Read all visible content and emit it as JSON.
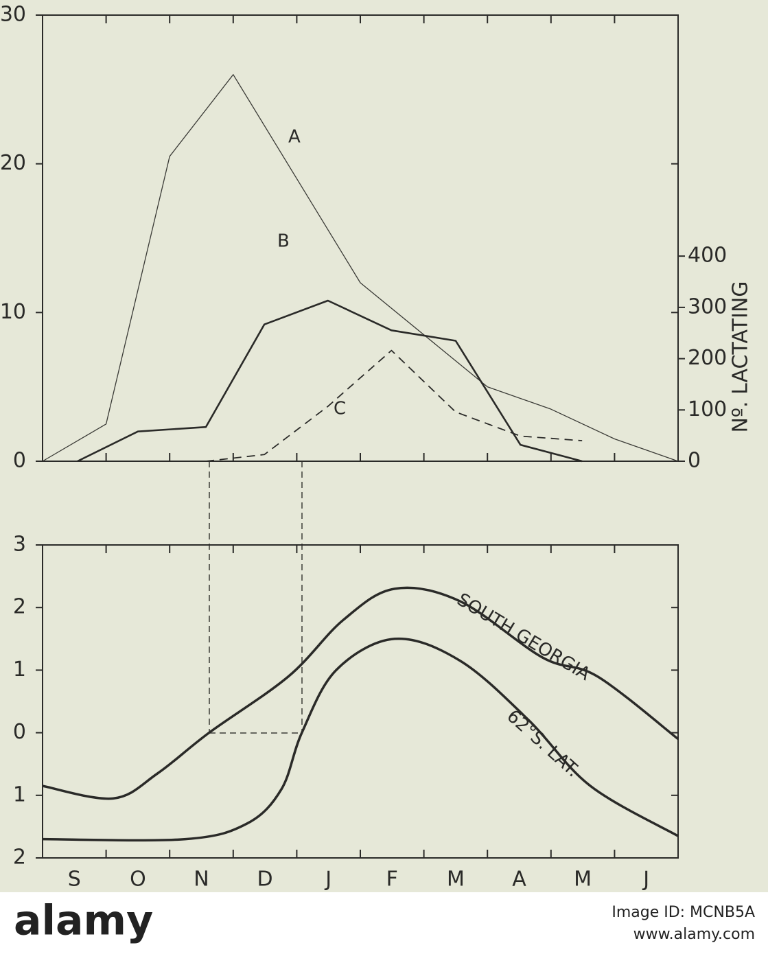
{
  "chart_data": [
    {
      "type": "line",
      "y2label": "Nº. LACTATING",
      "xlim": [
        0,
        10
      ],
      "ylim": [
        0,
        30
      ],
      "yticks": [
        0,
        10,
        20,
        30
      ],
      "y2lim": [
        0,
        870
      ],
      "y2ticks": [
        0,
        100,
        200,
        300,
        400
      ],
      "series": [
        {
          "name": "A",
          "color": "#3a3a36",
          "width": 1.3,
          "dash": false,
          "x": [
            0,
            1,
            2,
            3,
            4,
            5,
            7,
            8,
            9,
            10
          ],
          "values": [
            0,
            2.5,
            20.5,
            26,
            19,
            12,
            5,
            3.5,
            1.5,
            0
          ]
        },
        {
          "name": "B",
          "color": "#2a2a28",
          "width": 2.6,
          "dash": false,
          "x": [
            0.55,
            1.5,
            2.57,
            3.49,
            4.49,
            5.49,
            6.5,
            7.52,
            8.49
          ],
          "values": [
            0,
            2,
            2.3,
            9.2,
            10.8,
            8.8,
            8.1,
            1.1,
            0
          ]
        },
        {
          "name": "C",
          "color": "#2a2a28",
          "width": 1.8,
          "dash": true,
          "axis": "y2",
          "x": [
            2.57,
            3.49,
            4.49,
            5.49,
            6.5,
            7.52,
            8.49
          ],
          "values": [
            0,
            13,
            107,
            216,
            96,
            49,
            40
          ]
        }
      ]
    },
    {
      "type": "line",
      "smooth": true,
      "xlim": [
        0,
        10
      ],
      "ylim": [
        -2,
        3
      ],
      "yticks": [
        {
          "value": -2,
          "label": "2"
        },
        {
          "value": -1,
          "label": "1"
        },
        0,
        1,
        2,
        3
      ],
      "xticks": [
        {
          "value": 0.5,
          "label": "S"
        },
        {
          "value": 1.5,
          "label": "O"
        },
        {
          "value": 2.5,
          "label": "N"
        },
        {
          "value": 3.5,
          "label": "D"
        },
        {
          "value": 4.5,
          "label": "J"
        },
        {
          "value": 5.5,
          "label": "F"
        },
        {
          "value": 6.5,
          "label": "M"
        },
        {
          "value": 7.5,
          "label": "A"
        },
        {
          "value": 8.5,
          "label": "M"
        },
        {
          "value": 9.5,
          "label": "J"
        }
      ],
      "series": [
        {
          "name": "SOUTH GEORGIA",
          "color": "#2a2a28",
          "width": 3.5,
          "x": [
            0,
            1.11,
            1.81,
            2.62,
            3.87,
            4.73,
            5.54,
            6.57,
            7.87,
            8.73,
            10
          ],
          "values": [
            -0.85,
            -1.05,
            -0.65,
            0,
            0.9,
            1.8,
            2.3,
            2.1,
            1.2,
            0.9,
            -0.1
          ]
        },
        {
          "name": "62°S. LAT.",
          "color": "#2a2a28",
          "width": 3.5,
          "x": [
            0,
            2.25,
            3.22,
            3.76,
            4.08,
            4.62,
            5.54,
            6.57,
            7.65,
            8.62,
            10
          ],
          "values": [
            -1.7,
            -1.7,
            -1.45,
            -0.9,
            0,
            1.0,
            1.5,
            1.15,
            0.2,
            -0.85,
            -1.65
          ]
        }
      ]
    }
  ],
  "watermark": {
    "logo": "alamy",
    "id": "Image ID: MCNB5A",
    "url": "www.alamy.com"
  }
}
